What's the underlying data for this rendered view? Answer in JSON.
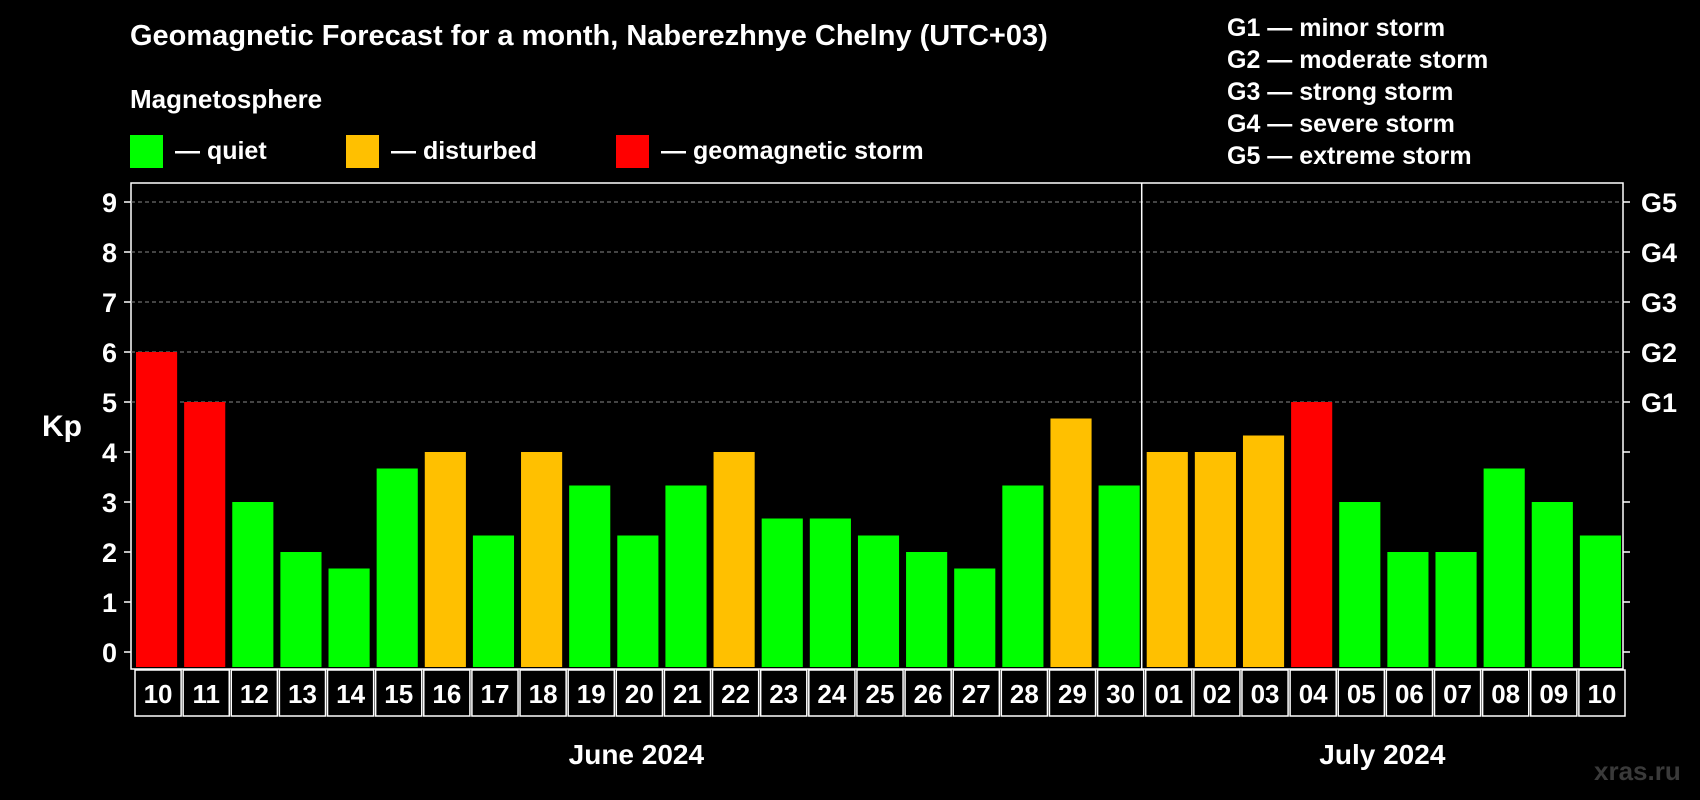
{
  "title": "Geomagnetic Forecast for a month, Naberezhnye Chelny (UTC+03)",
  "subtitle": "Magnetosphere",
  "legend": [
    {
      "label": "— quiet",
      "color": "#00ff00"
    },
    {
      "label": "— disturbed",
      "color": "#ffc000"
    },
    {
      "label": "— geomagnetic storm",
      "color": "#ff0000"
    }
  ],
  "storm_scale": [
    "G1 — minor storm",
    "G2 — moderate storm",
    "G3 — strong storm",
    "G4 — severe storm",
    "G5 — extreme storm"
  ],
  "ylabel": "Kp",
  "watermark": "xras.ru",
  "chart_data": {
    "type": "bar",
    "title": "Geomagnetic Forecast for a month, Naberezhnye Chelny (UTC+03)",
    "ylabel": "Kp",
    "ylim": [
      0,
      9
    ],
    "yticks": [
      "0",
      "1",
      "2",
      "3",
      "4",
      "5",
      "6",
      "7",
      "8",
      "9"
    ],
    "right_ticks": [
      {
        "kp": 5,
        "label": "G1"
      },
      {
        "kp": 6,
        "label": "G2"
      },
      {
        "kp": 7,
        "label": "G3"
      },
      {
        "kp": 8,
        "label": "G4"
      },
      {
        "kp": 9,
        "label": "G5"
      }
    ],
    "grid": "dashed horizontal at Kp 5-9",
    "categories": [
      "10",
      "11",
      "12",
      "13",
      "14",
      "15",
      "16",
      "17",
      "18",
      "19",
      "20",
      "21",
      "22",
      "23",
      "24",
      "25",
      "26",
      "27",
      "28",
      "29",
      "30",
      "01",
      "02",
      "03",
      "04",
      "05",
      "06",
      "07",
      "08",
      "09",
      "10"
    ],
    "values": [
      6,
      5,
      3,
      2,
      1.67,
      3.67,
      4,
      2.33,
      4,
      3.33,
      2.33,
      3.33,
      4,
      2.67,
      2.67,
      2.33,
      2,
      1.67,
      3.33,
      4.67,
      3.33,
      4,
      4,
      4.33,
      5,
      3,
      2,
      2,
      3.67,
      3,
      2.33
    ],
    "levels": [
      "storm",
      "storm",
      "quiet",
      "quiet",
      "quiet",
      "quiet",
      "disturbed",
      "quiet",
      "disturbed",
      "quiet",
      "quiet",
      "quiet",
      "disturbed",
      "quiet",
      "quiet",
      "quiet",
      "quiet",
      "quiet",
      "quiet",
      "disturbed",
      "quiet",
      "disturbed",
      "disturbed",
      "disturbed",
      "storm",
      "quiet",
      "quiet",
      "quiet",
      "quiet",
      "quiet",
      "quiet"
    ],
    "level_colors": {
      "quiet": "#00ff00",
      "disturbed": "#ffc000",
      "storm": "#ff0000"
    },
    "months": [
      {
        "label": "June 2024",
        "first": 0,
        "last": 20
      },
      {
        "label": "July 2024",
        "first": 21,
        "last": 30
      }
    ]
  }
}
